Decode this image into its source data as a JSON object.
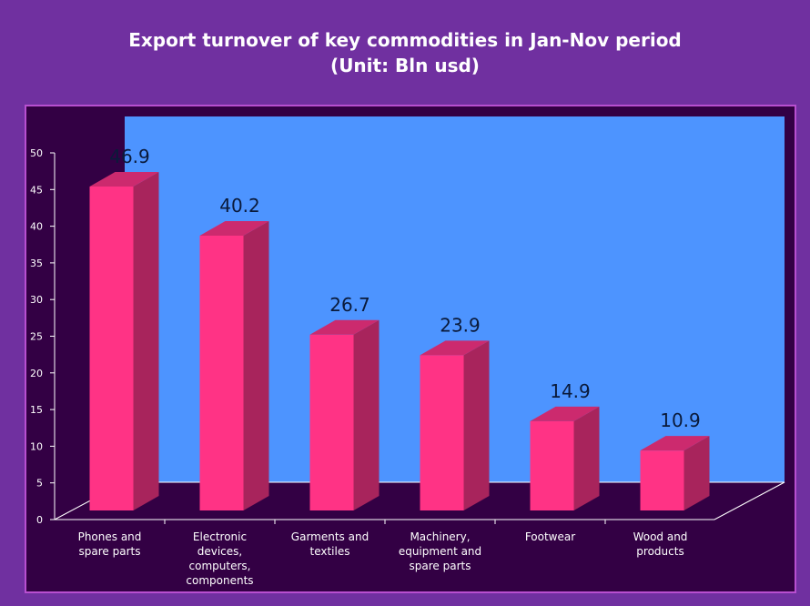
{
  "chart_data": {
    "type": "bar",
    "title": [
      "Export turnover of key commodities in Jan-Nov period",
      "(Unit: Bln usd)"
    ],
    "categories": [
      [
        "Phones and",
        "spare parts"
      ],
      [
        "Electronic",
        "devices,",
        "computers,",
        "components"
      ],
      [
        "Garments and",
        "textiles"
      ],
      [
        "Machinery,",
        "equipment and",
        "spare parts"
      ],
      [
        "Footwear"
      ],
      [
        "Wood and",
        "products"
      ]
    ],
    "values": [
      46.9,
      40.2,
      26.7,
      23.9,
      14.9,
      10.9
    ],
    "value_labels": [
      "46.9",
      "40.2",
      "26.7",
      "23.9",
      "14.9",
      "10.9"
    ],
    "y_ticks": [
      0,
      5,
      10,
      15,
      20,
      25,
      30,
      35,
      40,
      45,
      50
    ],
    "ylim": [
      0,
      50
    ],
    "style": "3d-column",
    "colors": {
      "background": "#7030a0",
      "plot_area": "#330044",
      "back_wall": "#4d94ff",
      "bar_front": "#ff3385",
      "bar_side": "#a8245c",
      "bar_top": "#cc2a6e",
      "value_text": "#0a1a3a"
    }
  }
}
